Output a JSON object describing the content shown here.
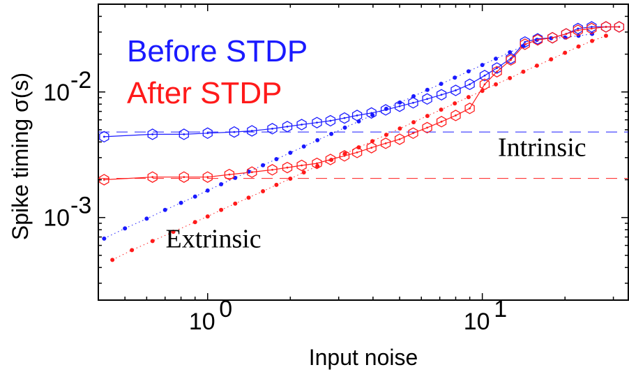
{
  "chart_data": {
    "type": "scatter",
    "title": "",
    "xlabel": "Input noise",
    "ylabel": "Spike timing σ(s)",
    "xscale": "log",
    "yscale": "log",
    "xlim": [
      0.4,
      34
    ],
    "ylim": [
      0.00022,
      0.05
    ],
    "grid": false,
    "x_ticks": [
      {
        "value": 1,
        "base": "10",
        "exp": "0"
      },
      {
        "value": 10,
        "base": "10",
        "exp": "1"
      }
    ],
    "y_ticks": [
      {
        "value": 0.001,
        "base": "10",
        "exp": "-3"
      },
      {
        "value": 0.01,
        "base": "10",
        "exp": "-2"
      }
    ],
    "legend": [
      {
        "label": "Before STDP",
        "color": "#1a1aff"
      },
      {
        "label": "After STDP",
        "color": "#ff1a1a"
      }
    ],
    "legend_placement": "top-left",
    "annotations": [
      {
        "text": "Intrinsic",
        "x": 16.5,
        "y": 0.0031
      },
      {
        "text": "Extrinsic",
        "x": 1.05,
        "y": 0.00058
      }
    ],
    "series": [
      {
        "name": "Before STDP",
        "color": "#1a1aff",
        "intrinsic_level": 0.0048,
        "total_hexagons": {
          "x": [
            0.42,
            0.63,
            0.82,
            1.0,
            1.25,
            1.45,
            1.72,
            1.95,
            2.2,
            2.5,
            2.8,
            3.15,
            3.5,
            3.95,
            4.45,
            5.0,
            5.6,
            6.3,
            7.1,
            8.0,
            9.0,
            10.2,
            11.3,
            12.7,
            14.3,
            15.9,
            18.0,
            20.2,
            22.3,
            25.0,
            28.2,
            31.5
          ],
          "y": [
            0.0044,
            0.0046,
            0.0046,
            0.0047,
            0.0048,
            0.0049,
            0.0051,
            0.0053,
            0.0055,
            0.0057,
            0.0059,
            0.0062,
            0.0065,
            0.0068,
            0.0072,
            0.0077,
            0.0082,
            0.0088,
            0.0095,
            0.0103,
            0.0115,
            0.0135,
            0.0155,
            0.0185,
            0.025,
            0.0265,
            0.027,
            0.029,
            0.032,
            0.033,
            0.033,
            0.033
          ]
        },
        "extrinsic_dots": {
          "x": [
            0.42,
            0.5,
            0.6,
            0.7,
            0.8,
            0.9,
            1.0,
            1.12,
            1.26,
            1.41,
            1.59,
            1.78,
            2.0,
            2.24,
            2.51,
            2.82,
            3.16,
            3.55,
            3.98,
            4.47,
            5.01,
            5.62,
            6.31,
            7.08,
            7.94,
            8.91,
            10.0,
            11.2,
            12.6,
            14.1,
            15.8,
            17.8,
            20.0,
            22.4,
            25.1
          ],
          "y": [
            0.00068,
            0.00082,
            0.00098,
            0.00115,
            0.00131,
            0.00147,
            0.00164,
            0.00184,
            0.00207,
            0.00232,
            0.00261,
            0.00292,
            0.00328,
            0.00368,
            0.00413,
            0.00463,
            0.0052,
            0.00583,
            0.00655,
            0.00734,
            0.00824,
            0.00925,
            0.0104,
            0.0116,
            0.013,
            0.0146,
            0.0164,
            0.0184,
            0.0207,
            0.0232,
            0.026,
            0.0268,
            0.0272,
            0.028,
            0.029
          ]
        }
      },
      {
        "name": "After STDP",
        "color": "#ff1a1a",
        "intrinsic_level": 0.00205,
        "total_hexagons": {
          "x": [
            0.42,
            0.63,
            0.82,
            1.0,
            1.2,
            1.45,
            1.72,
            1.95,
            2.2,
            2.5,
            2.8,
            3.15,
            3.5,
            3.95,
            4.45,
            5.0,
            5.6,
            6.3,
            7.1,
            8.0,
            9.0,
            10.2,
            11.3,
            12.7,
            14.3,
            15.9,
            18.0,
            20.2,
            22.3,
            25.0,
            28.2,
            31.5
          ],
          "y": [
            0.002,
            0.0021,
            0.0021,
            0.0021,
            0.0022,
            0.0023,
            0.0024,
            0.0025,
            0.0026,
            0.0027,
            0.0029,
            0.0031,
            0.0033,
            0.0036,
            0.0039,
            0.0042,
            0.0047,
            0.0052,
            0.0058,
            0.0065,
            0.0074,
            0.0115,
            0.0145,
            0.018,
            0.024,
            0.026,
            0.027,
            0.029,
            0.031,
            0.032,
            0.033,
            0.033
          ]
        },
        "extrinsic_dots": {
          "x": [
            0.45,
            0.53,
            0.63,
            0.75,
            0.9,
            1.0,
            1.12,
            1.26,
            1.41,
            1.59,
            1.78,
            2.0,
            2.24,
            2.51,
            2.82,
            3.16,
            3.55,
            3.98,
            4.47,
            5.01,
            5.62,
            6.31,
            7.08,
            7.94,
            8.91,
            10.0,
            11.2,
            12.6,
            14.1,
            15.8,
            17.8,
            20.0,
            22.4,
            25.1,
            28.2
          ],
          "y": [
            0.00046,
            0.00055,
            0.00065,
            0.00077,
            0.00092,
            0.00102,
            0.00115,
            0.00129,
            0.00144,
            0.00162,
            0.00182,
            0.00204,
            0.00229,
            0.00257,
            0.00288,
            0.00323,
            0.00362,
            0.00406,
            0.00456,
            0.00512,
            0.00574,
            0.00644,
            0.00723,
            0.00811,
            0.0091,
            0.0102,
            0.0115,
            0.0129,
            0.0145,
            0.0162,
            0.0182,
            0.0205,
            0.023,
            0.0255,
            0.028
          ]
        }
      }
    ]
  }
}
